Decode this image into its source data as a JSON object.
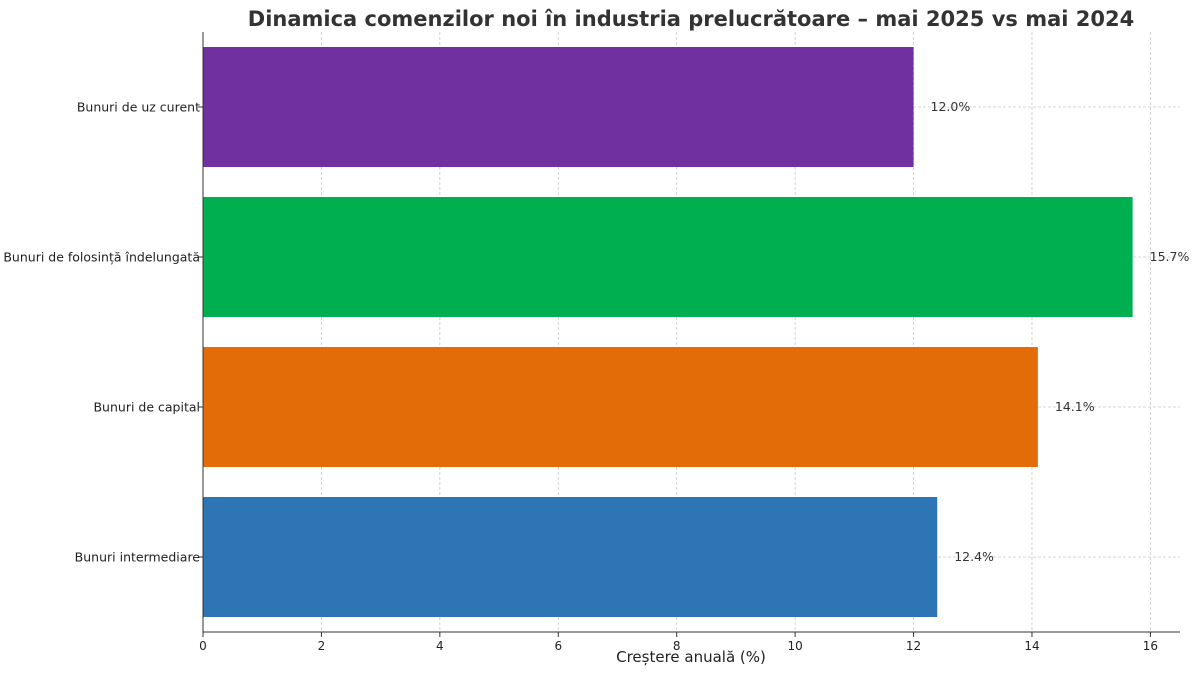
{
  "chart_data": {
    "type": "bar",
    "orientation": "horizontal",
    "title": "Dinamica comenzilor noi în industria prelucrătoare – mai 2025 vs mai 2024",
    "xlabel": "Creștere anuală (%)",
    "ylabel": "",
    "categories": [
      "Bunuri de uz curent",
      "Bunuri de folosință îndelungată",
      "Bunuri de capital",
      "Bunuri intermediare"
    ],
    "values": [
      12.0,
      15.7,
      14.1,
      12.4
    ],
    "data_labels": [
      "12.0%",
      "15.7%",
      "14.1%",
      "12.4%"
    ],
    "colors": [
      "#7030a0",
      "#00b050",
      "#e36c09",
      "#2e75b6"
    ],
    "xlim": [
      0,
      16.5
    ],
    "xticks": [
      0,
      2,
      4,
      6,
      8,
      10,
      12,
      14,
      16
    ],
    "grid": true,
    "legend": "none"
  }
}
